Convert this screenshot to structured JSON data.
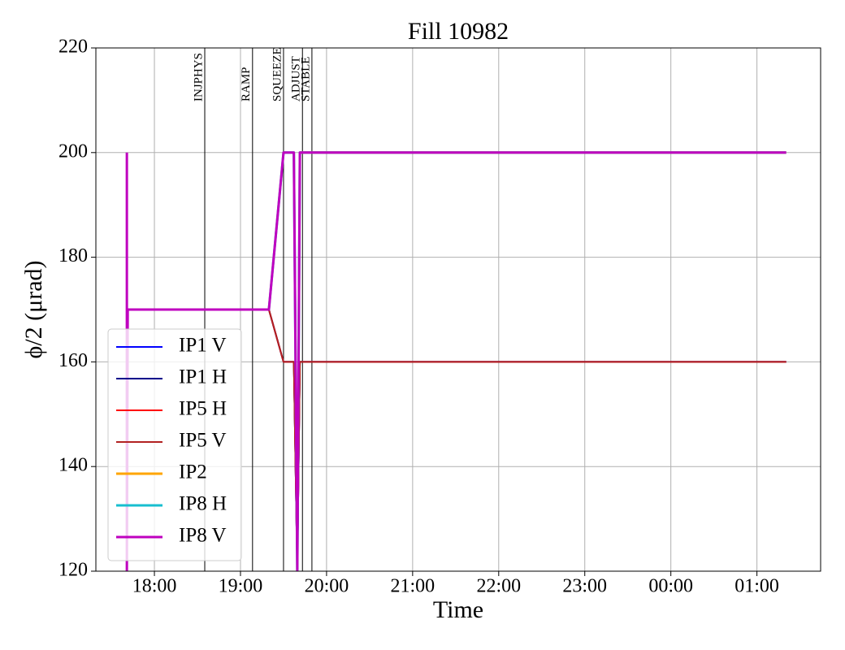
{
  "chart_data": {
    "type": "line",
    "title": "Fill 10982",
    "xlabel": "Time",
    "ylabel": "ϕ/2 (μrad)",
    "xlim": [
      17.32,
      25.74
    ],
    "xticks": [
      {
        "value": 18,
        "label": "18:00"
      },
      {
        "value": 19,
        "label": "19:00"
      },
      {
        "value": 20,
        "label": "20:00"
      },
      {
        "value": 21,
        "label": "21:00"
      },
      {
        "value": 22,
        "label": "22:00"
      },
      {
        "value": 23,
        "label": "23:00"
      },
      {
        "value": 24,
        "label": "00:00"
      },
      {
        "value": 25,
        "label": "01:00"
      }
    ],
    "ylim": [
      120,
      220
    ],
    "yticks": [
      120,
      140,
      160,
      180,
      200,
      220
    ],
    "grid": true,
    "legend": "lower left",
    "phases": [
      {
        "label": "INJPHYS",
        "x": 18.585
      },
      {
        "label": "RAMP",
        "x": 19.14
      },
      {
        "label": "SQUEEZE",
        "x": 19.5
      },
      {
        "label": "ADJUST",
        "x": 19.72
      },
      {
        "label": "STABLE",
        "x": 19.83
      }
    ],
    "series": [
      {
        "name": "IP1 V",
        "color": "#0000ff",
        "width": 2,
        "x": [
          17.68,
          19.33,
          19.5,
          19.62,
          19.66,
          19.69,
          25.34
        ],
        "values": [
          170,
          170,
          160,
          160,
          120,
          160,
          160
        ]
      },
      {
        "name": "IP1 H",
        "color": "#00008b",
        "width": 2,
        "x": [
          17.68,
          19.33,
          19.5,
          19.62,
          19.66,
          19.69,
          25.34
        ],
        "values": [
          170,
          170,
          160,
          160,
          120,
          160,
          160
        ]
      },
      {
        "name": "IP5 H",
        "color": "#ff0000",
        "width": 2,
        "x": [
          17.68,
          19.33,
          19.5,
          19.62,
          19.66,
          19.69,
          25.34
        ],
        "values": [
          170,
          170,
          160,
          160,
          120,
          160,
          160
        ]
      },
      {
        "name": "IP5 V",
        "color": "#b22222",
        "width": 2,
        "x": [
          17.68,
          19.33,
          19.5,
          19.62,
          19.66,
          19.69,
          25.34
        ],
        "values": [
          170,
          170,
          160,
          160,
          120,
          160,
          160
        ]
      },
      {
        "name": "IP2",
        "color": "#ffa500",
        "width": 3,
        "x": [
          19.69,
          25.34
        ],
        "values": [
          200,
          200
        ]
      },
      {
        "name": "IP8 H",
        "color": "#17becf",
        "width": 3,
        "x": [
          17.68,
          19.33,
          19.5,
          19.62,
          19.66,
          19.69,
          25.34
        ],
        "values": [
          170,
          170,
          200,
          200,
          120,
          200,
          200
        ]
      },
      {
        "name": "IP8 V",
        "color": "#bf00bf",
        "width": 3,
        "x": [
          17.68,
          17.68,
          17.69,
          19.33,
          19.5,
          19.62,
          19.66,
          19.69,
          25.34
        ],
        "values": [
          200,
          120,
          170,
          170,
          200,
          200,
          120,
          200,
          200
        ]
      }
    ]
  }
}
